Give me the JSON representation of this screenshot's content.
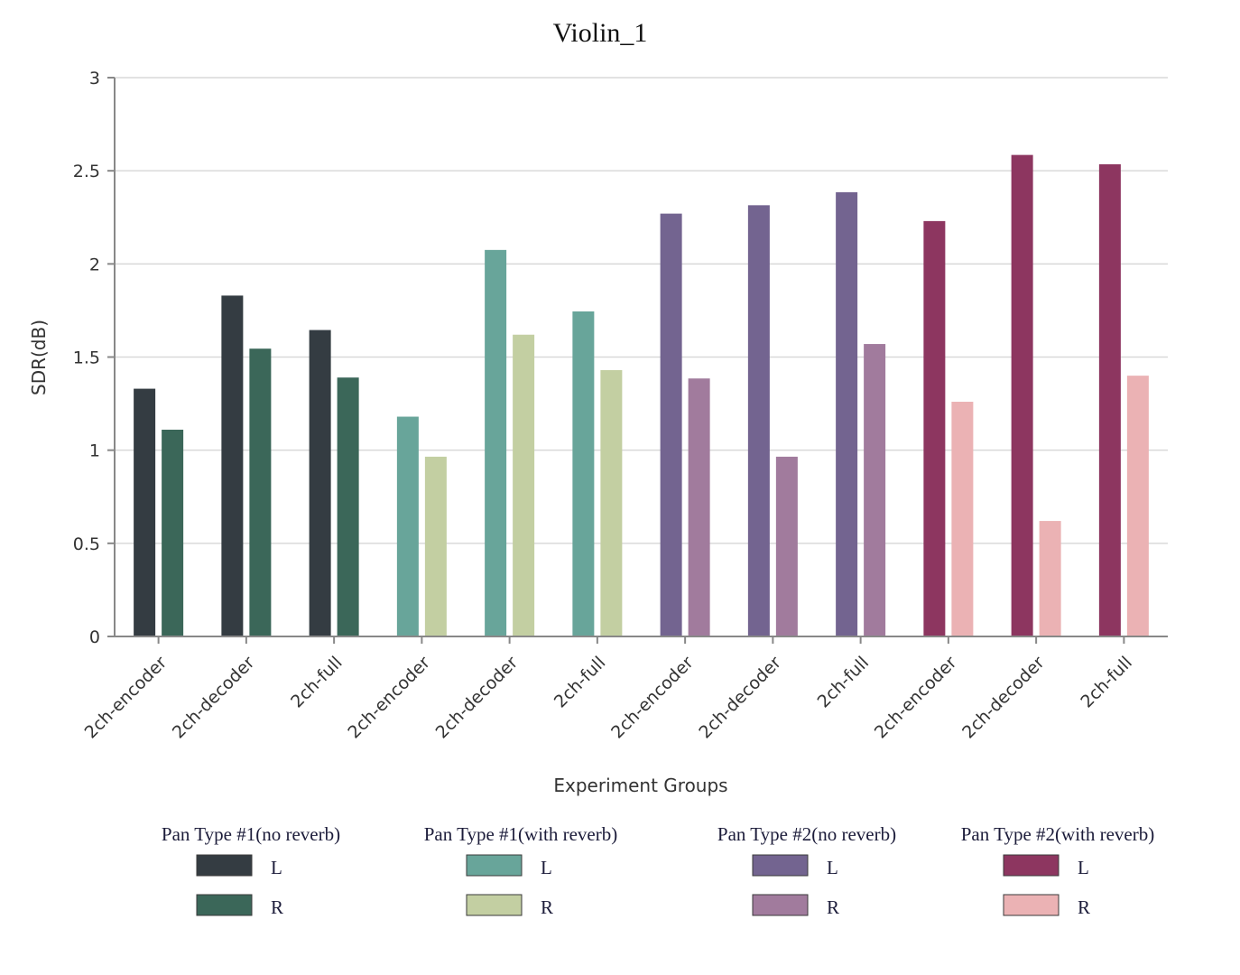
{
  "chart_data": {
    "type": "bar",
    "title": "Violin_1",
    "xlabel": "Experiment Groups",
    "ylabel": "SDR(dB)",
    "ylim": [
      0,
      3
    ],
    "yticks": [
      {
        "value": 0,
        "label": "0"
      },
      {
        "value": 0.5,
        "label": "0.5"
      },
      {
        "value": 1,
        "label": "1"
      },
      {
        "value": 1.5,
        "label": "1.5"
      },
      {
        "value": 2,
        "label": "2"
      },
      {
        "value": 2.5,
        "label": "2.5"
      },
      {
        "value": 3,
        "label": "3"
      }
    ],
    "grid": true,
    "legend_position": "bottom",
    "categories": [
      "2ch-encoder",
      "2ch-decoder",
      "2ch-full",
      "2ch-encoder",
      "2ch-decoder",
      "2ch-full",
      "2ch-encoder",
      "2ch-decoder",
      "2ch-full",
      "2ch-encoder",
      "2ch-decoder",
      "2ch-full"
    ],
    "groups": [
      {
        "name": "Pan Type #1(no reverb)",
        "colors": {
          "L": "#343c42",
          "R": "#3b6759"
        }
      },
      {
        "name": "Pan Type #1(with reverb)",
        "colors": {
          "L": "#68a59a",
          "R": "#c3cfa2"
        }
      },
      {
        "name": "Pan Type #2(no reverb)",
        "colors": {
          "L": "#736490",
          "R": "#a17b9d"
        }
      },
      {
        "name": "Pan Type #2(with reverb)",
        "colors": {
          "L": "#8d3660",
          "R": "#ebb2b4"
        }
      }
    ],
    "series": [
      {
        "name": "L",
        "values": [
          1.33,
          1.83,
          1.645,
          1.18,
          2.075,
          1.745,
          2.27,
          2.315,
          2.385,
          2.23,
          2.585,
          2.535
        ]
      },
      {
        "name": "R",
        "values": [
          1.11,
          1.545,
          1.39,
          0.965,
          1.62,
          1.43,
          1.385,
          0.965,
          1.57,
          1.26,
          0.62,
          1.4
        ]
      }
    ]
  }
}
